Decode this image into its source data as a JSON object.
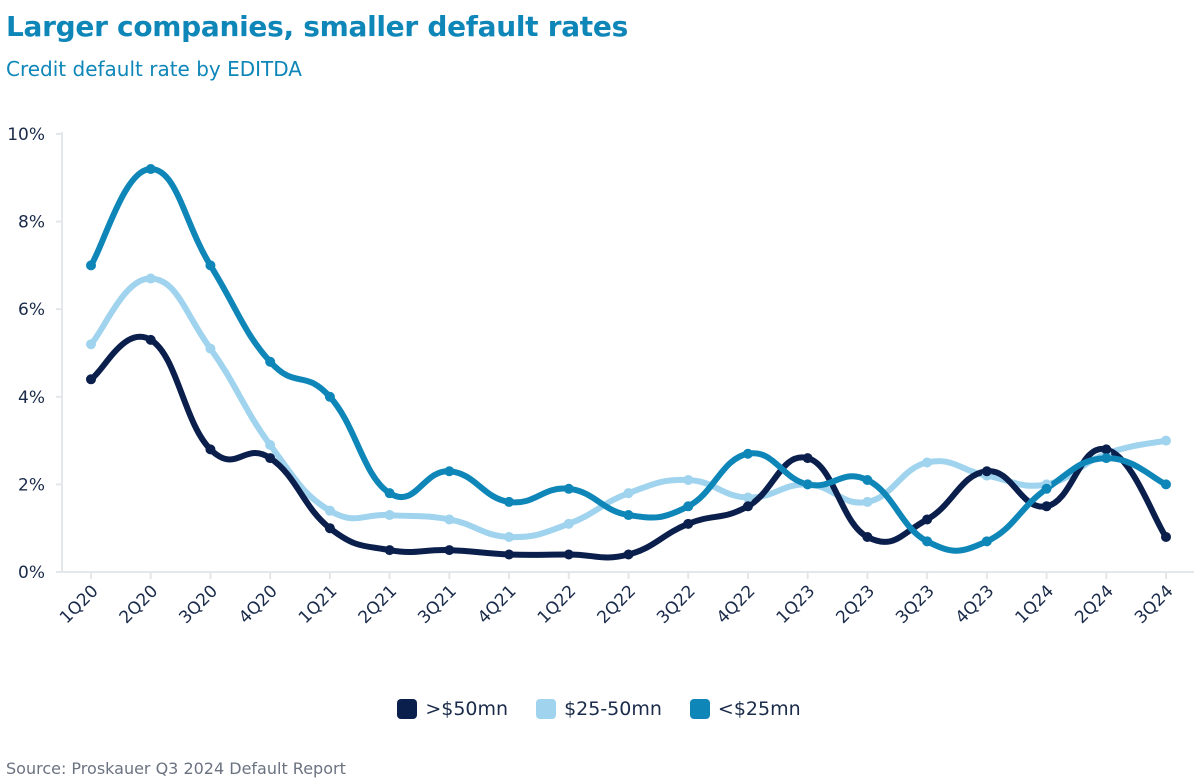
{
  "header": {
    "title": "Larger companies, smaller default rates",
    "subtitle": "Credit default rate by EDITDA"
  },
  "source": "Source: Proskauer Q3 2024 Default Report",
  "colors": {
    "gt50": "#0b1f4d",
    "mid": "#9fd3ee",
    "lt25": "#0e86b8",
    "axis": "#e3e6ea",
    "text": "#1a2b4a"
  },
  "chart_data": {
    "type": "line",
    "title": "Larger companies, smaller default rates",
    "subtitle": "Credit default rate by EDITDA",
    "categories": [
      "1Q20",
      "2Q20",
      "3Q20",
      "4Q20",
      "1Q21",
      "2Q21",
      "3Q21",
      "4Q21",
      "1Q22",
      "2Q22",
      "3Q22",
      "4Q22",
      "1Q23",
      "2Q23",
      "3Q23",
      "4Q23",
      "1Q24",
      "2Q24",
      "3Q24"
    ],
    "y_ticks": [
      "0%",
      "2%",
      "4%",
      "6%",
      "8%",
      "10%"
    ],
    "ylim": [
      0,
      10
    ],
    "y_unit": "%",
    "legend_position": "bottom",
    "grid": false,
    "series": [
      {
        "name": ">$50mn",
        "color": "#0b1f4d",
        "values": [
          4.4,
          5.3,
          2.8,
          2.6,
          1.0,
          0.5,
          0.5,
          0.4,
          0.4,
          0.4,
          1.1,
          1.5,
          2.6,
          0.8,
          1.2,
          2.3,
          1.5,
          2.8,
          0.8
        ]
      },
      {
        "name": "$25-50mn",
        "color": "#9fd3ee",
        "values": [
          5.2,
          6.7,
          5.1,
          2.9,
          1.4,
          1.3,
          1.2,
          0.8,
          1.1,
          1.8,
          2.1,
          1.7,
          2.0,
          1.6,
          2.5,
          2.2,
          2.0,
          2.7,
          3.0
        ]
      },
      {
        "name": "<$25mn",
        "color": "#0e86b8",
        "values": [
          7.0,
          9.2,
          7.0,
          4.8,
          4.0,
          1.8,
          2.3,
          1.6,
          1.9,
          1.3,
          1.5,
          2.7,
          2.0,
          2.1,
          0.7,
          0.7,
          1.9,
          2.6,
          2.0
        ]
      }
    ]
  }
}
